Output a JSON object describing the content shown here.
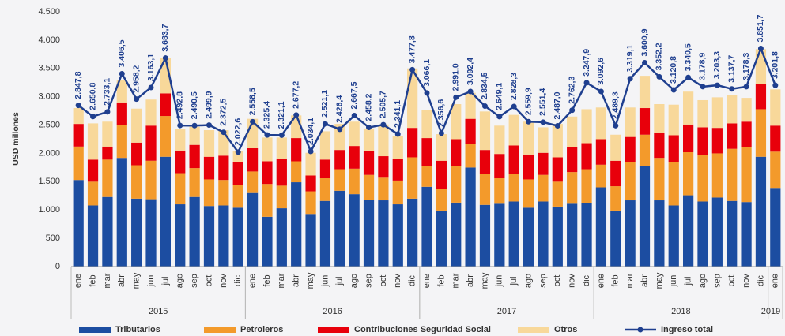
{
  "chart_data": {
    "type": "bar",
    "stacked": true,
    "y_label": "USD millones",
    "categories": [
      "ene",
      "feb",
      "mar",
      "abr",
      "may",
      "jun",
      "jul",
      "ago",
      "sep",
      "oct",
      "nov",
      "dic",
      "ene",
      "feb",
      "mar",
      "abr",
      "may",
      "jun",
      "jul",
      "ago",
      "sep",
      "oct",
      "nov",
      "dic",
      "ene",
      "feb",
      "mar",
      "abr",
      "may",
      "jun",
      "jul",
      "ago",
      "sep",
      "oct",
      "nov",
      "dic",
      "ene",
      "feb",
      "mar",
      "abr",
      "may",
      "jun",
      "jul",
      "ago",
      "sep",
      "oct",
      "nov",
      "dic",
      "ene"
    ],
    "years": [
      "2015",
      "2016",
      "2017",
      "2018",
      "2019"
    ],
    "ylim": [
      0,
      4500
    ],
    "yticks": [
      0,
      500,
      {
        "value": 1000,
        "label": "1.000"
      },
      {
        "value": 1500,
        "label": "1.500"
      },
      {
        "value": 2000,
        "label": "2.000"
      },
      {
        "value": 2500,
        "label": "2.500"
      },
      {
        "value": 3000,
        "label": "3.000"
      },
      {
        "value": 3500,
        "label": "3.500"
      },
      {
        "value": 4000,
        "label": "4.000"
      },
      {
        "value": 4500,
        "label": "4.500"
      }
    ],
    "grid": false,
    "legend": "bottom",
    "series": [
      {
        "name": "Tributarios",
        "color": "#1c4da1",
        "values": [
          1530,
          1080,
          1230,
          1920,
          1200,
          1190,
          1940,
          1100,
          1230,
          1070,
          1080,
          1040,
          1300,
          880,
          1030,
          1490,
          930,
          1160,
          1340,
          1280,
          1180,
          1170,
          1100,
          1200,
          1410,
          990,
          1130,
          1750,
          1090,
          1110,
          1150,
          1040,
          1150,
          1060,
          1110,
          1120,
          1400,
          990,
          1170,
          1780,
          1170,
          1080,
          1260,
          1150,
          1220,
          1160,
          1140,
          1940,
          1390
        ]
      },
      {
        "name": "Petroleros",
        "color": "#f39a2b",
        "values": [
          590,
          420,
          660,
          580,
          590,
          680,
          720,
          550,
          510,
          470,
          450,
          400,
          380,
          580,
          400,
          370,
          400,
          400,
          380,
          450,
          440,
          400,
          420,
          730,
          360,
          380,
          640,
          420,
          540,
          450,
          480,
          500,
          470,
          440,
          560,
          600,
          400,
          430,
          670,
          550,
          750,
          770,
          760,
          820,
          780,
          920,
          970,
          840,
          640
        ]
      },
      {
        "name": "Contribuciones Seguridad Social",
        "color": "#e8000b",
        "values": [
          400,
          390,
          230,
          400,
          400,
          620,
          400,
          400,
          410,
          400,
          430,
          400,
          410,
          400,
          480,
          410,
          280,
          330,
          340,
          400,
          420,
          380,
          380,
          520,
          500,
          500,
          480,
          440,
          430,
          430,
          510,
          440,
          390,
          430,
          440,
          460,
          450,
          450,
          450,
          470,
          450,
          470,
          490,
          490,
          450,
          450,
          450,
          450,
          460
        ]
      },
      {
        "name": "Otros",
        "color": "#f8d89a",
        "values": [
          280,
          640,
          440,
          400,
          600,
          460,
          620,
          380,
          320,
          470,
          450,
          200,
          520,
          420,
          370,
          400,
          400,
          500,
          460,
          430,
          400,
          560,
          400,
          1050,
          490,
          470,
          620,
          460,
          680,
          500,
          540,
          580,
          450,
          590,
          540,
          600,
          560,
          460,
          520,
          570,
          500,
          540,
          580,
          480,
          540,
          500,
          420,
          610,
          640
        ]
      },
      {
        "name": "Ingreso total",
        "type": "line",
        "color": "#1f3f8f",
        "values": [
          2847.8,
          2650.8,
          2733.1,
          3406.5,
          2958.2,
          3163.1,
          3683.7,
          2492.8,
          2490.5,
          2499.9,
          2372.5,
          2022.6,
          2558.5,
          2325.4,
          2321.1,
          2677.2,
          2034.1,
          2521.1,
          2426.4,
          2667.5,
          2458.2,
          2505.7,
          2341.1,
          3477.8,
          3066.1,
          2356.6,
          2991.0,
          3092.4,
          2834.5,
          2649.1,
          2828.3,
          2559.9,
          2551.4,
          2487.0,
          2762.3,
          3247.9,
          3092.6,
          2489.3,
          3319.1,
          3600.9,
          3352.2,
          3120.8,
          3340.5,
          3178.9,
          3203.3,
          3137.7,
          3178.3,
          3851.7,
          3201.8
        ],
        "value_labels": [
          "2.847,8",
          "2.650,8",
          "2.733,1",
          "3.406,5",
          "2.958,2",
          "3.163,1",
          "3.683,7",
          "2.492,8",
          "2.490,5",
          "2.499,9",
          "2.372,5",
          "2.022,6",
          "2.558,5",
          "2.325,4",
          "2.321,1",
          "2.677,2",
          "2.034,1",
          "2.521,1",
          "2.426,4",
          "2.667,5",
          "2.458,2",
          "2.505,7",
          "2.341,1",
          "3.477,8",
          "3.066,1",
          "2.356,6",
          "2.991,0",
          "3.092,4",
          "2.834,5",
          "2.649,1",
          "2.828,3",
          "2.559,9",
          "2.551,4",
          "2.487,0",
          "2.762,3",
          "3.247,9",
          "3.092,6",
          "2.489,3",
          "3.319,1",
          "3.600,9",
          "3.352,2",
          "3.120,8",
          "3.340,5",
          "3.178,9",
          "3.203,3",
          "3.137,7",
          "3.178,3",
          "3.851,7",
          "3.201,8"
        ]
      }
    ]
  }
}
